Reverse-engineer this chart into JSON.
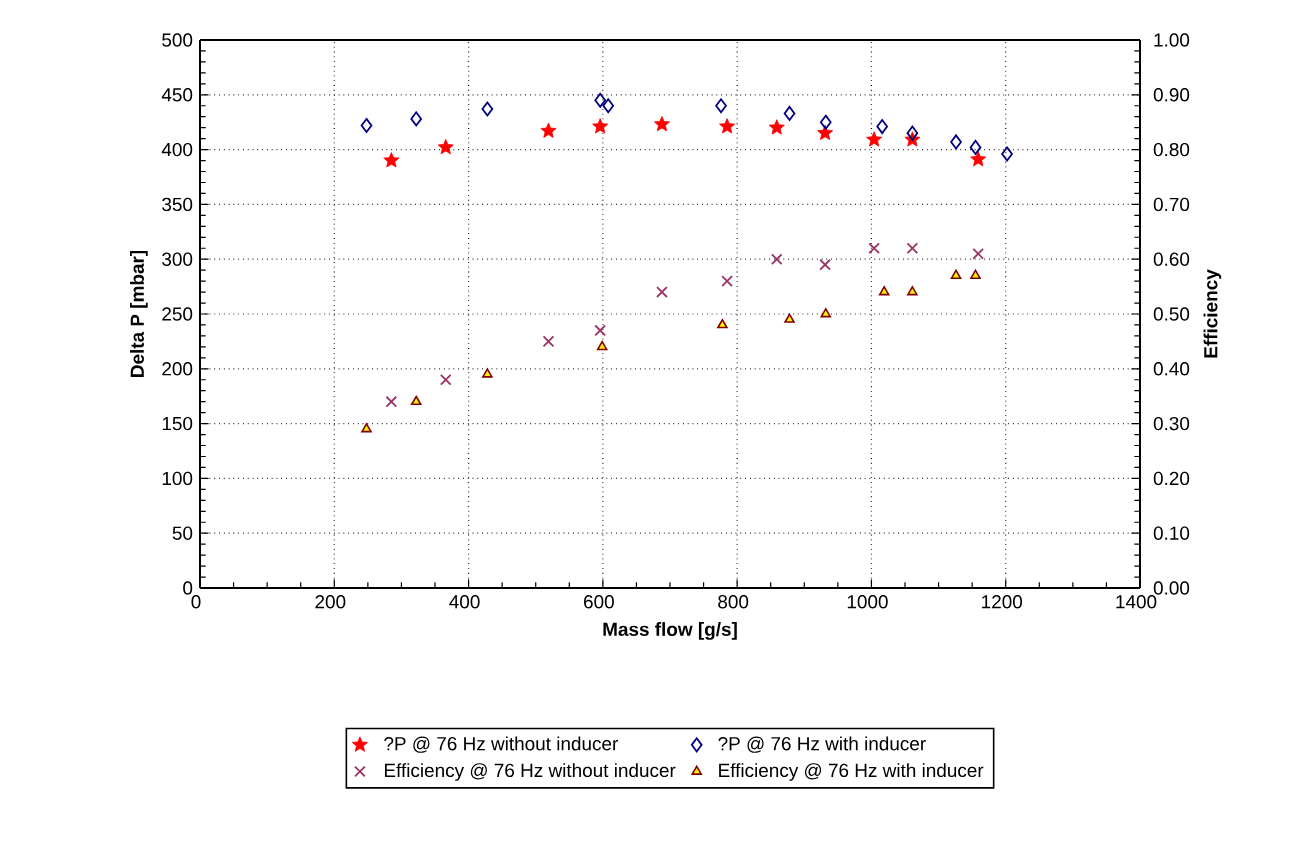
{
  "chart_data": {
    "type": "scatter",
    "xlabel": "Mass flow [g/s]",
    "ylabel": "Delta P [mbar]",
    "y2label": "Efficiency",
    "xlim": [
      0,
      1400
    ],
    "xticks": [
      0,
      200,
      400,
      600,
      800,
      1000,
      1200,
      1400
    ],
    "ylim": [
      0,
      500
    ],
    "yticks": [
      0,
      50,
      100,
      150,
      200,
      250,
      300,
      350,
      400,
      450,
      500
    ],
    "y2lim": [
      0,
      1
    ],
    "y2ticks": [
      {
        "value": 0,
        "label": "0.00"
      },
      {
        "value": 0.1,
        "label": "0.10"
      },
      {
        "value": 0.2,
        "label": "0.20"
      },
      {
        "value": 0.3,
        "label": "0.30"
      },
      {
        "value": 0.4,
        "label": "0.40"
      },
      {
        "value": 0.5,
        "label": "0.50"
      },
      {
        "value": 0.6,
        "label": "0.60"
      },
      {
        "value": 0.7,
        "label": "0.70"
      },
      {
        "value": 0.8,
        "label": "0.80"
      },
      {
        "value": 0.9,
        "label": "0.90"
      },
      {
        "value": 1,
        "label": "1.00"
      }
    ],
    "grid": true,
    "legend": "bottom",
    "series": [
      {
        "name": "?P @ 76 Hz without inducer",
        "color": "#ff0000",
        "marker": "star",
        "x": [
          285,
          366,
          519,
          596,
          688,
          785,
          859,
          931,
          1004,
          1061,
          1159
        ],
        "values": [
          390,
          402,
          417,
          421,
          423,
          421,
          420,
          415,
          409,
          409,
          391
        ]
      },
      {
        "name": "?P @ 76 Hz with inducer",
        "color": "#000080",
        "marker": "diamond",
        "x": [
          248,
          322,
          428,
          596,
          608,
          776,
          878,
          932,
          1016,
          1061,
          1126,
          1155,
          1202
        ],
        "values": [
          422,
          428,
          437,
          445,
          440,
          440,
          433,
          425,
          421,
          415,
          407,
          402,
          396
        ]
      },
      {
        "name": "Efficiency @ 76 Hz without inducer",
        "color": "#993366",
        "marker": "cross",
        "axis": "y2",
        "x": [
          285,
          366,
          519,
          596,
          688,
          785,
          859,
          931,
          1004,
          1061,
          1159
        ],
        "values": [
          0.34,
          0.38,
          0.45,
          0.47,
          0.54,
          0.56,
          0.6,
          0.59,
          0.62,
          0.62,
          0.61
        ]
      },
      {
        "name": "Efficiency @ 76 Hz with inducer",
        "color": "#800000",
        "marker": "triangle",
        "axis": "y2",
        "x": [
          248,
          322,
          428,
          599,
          778,
          878,
          932,
          1019,
          1061,
          1126,
          1155
        ],
        "values": [
          0.29,
          0.34,
          0.39,
          0.44,
          0.48,
          0.49,
          0.5,
          0.54,
          0.54,
          0.57,
          0.57
        ]
      }
    ]
  }
}
